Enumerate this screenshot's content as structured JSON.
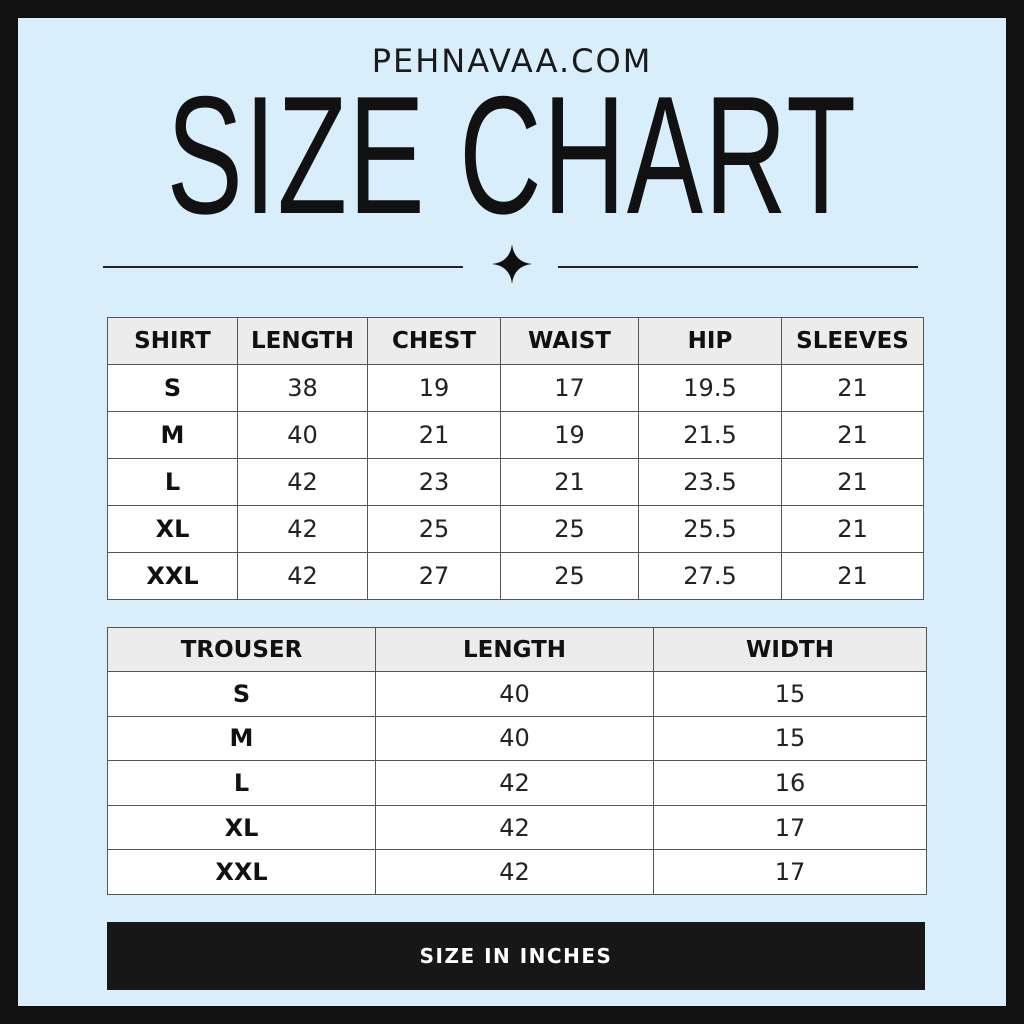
{
  "header": {
    "site": "PEHNAVAA.COM",
    "title": "SIZE CHART"
  },
  "shirt_table": {
    "columns": [
      "SHIRT",
      "LENGTH",
      "CHEST",
      "WAIST",
      "HIP",
      "SLEEVES"
    ],
    "rows": [
      [
        "S",
        "38",
        "19",
        "17",
        "19.5",
        "21"
      ],
      [
        "M",
        "40",
        "21",
        "19",
        "21.5",
        "21"
      ],
      [
        "L",
        "42",
        "23",
        "21",
        "23.5",
        "21"
      ],
      [
        "XL",
        "42",
        "25",
        "25",
        "25.5",
        "21"
      ],
      [
        "XXL",
        "42",
        "27",
        "25",
        "27.5",
        "21"
      ]
    ]
  },
  "trouser_table": {
    "columns": [
      "TROUSER",
      "LENGTH",
      "WIDTH"
    ],
    "rows": [
      [
        "S",
        "40",
        "15"
      ],
      [
        "M",
        "40",
        "15"
      ],
      [
        "L",
        "42",
        "16"
      ],
      [
        "XL",
        "42",
        "17"
      ],
      [
        "XXL",
        "42",
        "17"
      ]
    ]
  },
  "footer": {
    "note": "SIZE IN INCHES"
  }
}
